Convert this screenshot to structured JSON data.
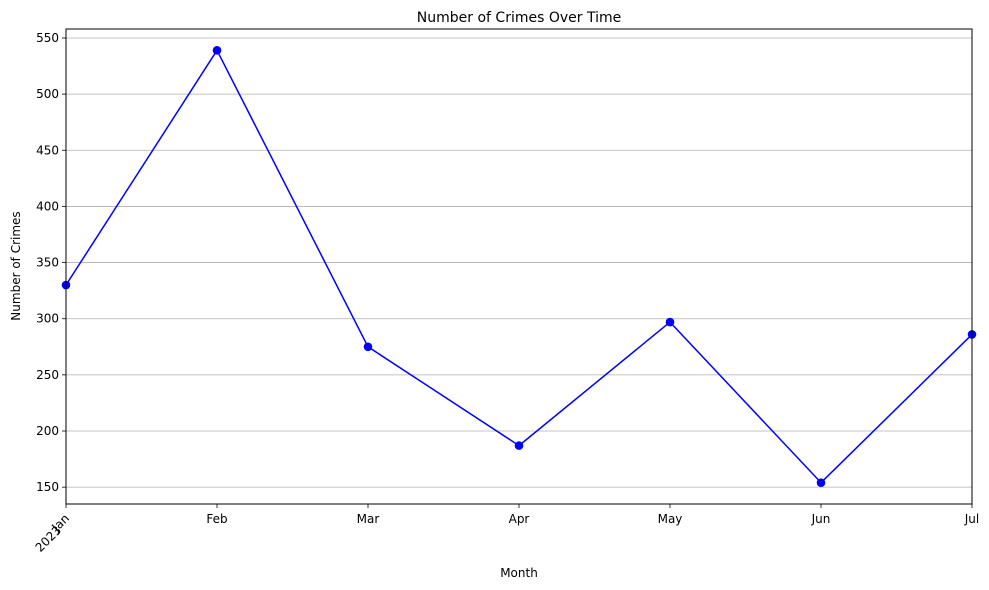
{
  "chart_data": {
    "type": "line",
    "title": "Number of Crimes Over Time",
    "xlabel": "Month",
    "ylabel": "Number of Crimes",
    "x": [
      "2023-01",
      "2023-02",
      "2023-03",
      "2023-04",
      "2023-05",
      "2023-06",
      "2023-07"
    ],
    "x_tick_labels": [
      "Jan",
      "Feb",
      "Mar",
      "Apr",
      "May",
      "Jun",
      "Jul"
    ],
    "x_tick_year_label": "2023",
    "y_ticks": [
      150,
      200,
      250,
      300,
      350,
      400,
      450,
      500,
      550
    ],
    "ylim": [
      135,
      558
    ],
    "grid": "horizontal",
    "series": [
      {
        "values": [
          330,
          539,
          275,
          187,
          297,
          154,
          286
        ],
        "color": "#0000ff",
        "marker": "circle"
      }
    ]
  }
}
